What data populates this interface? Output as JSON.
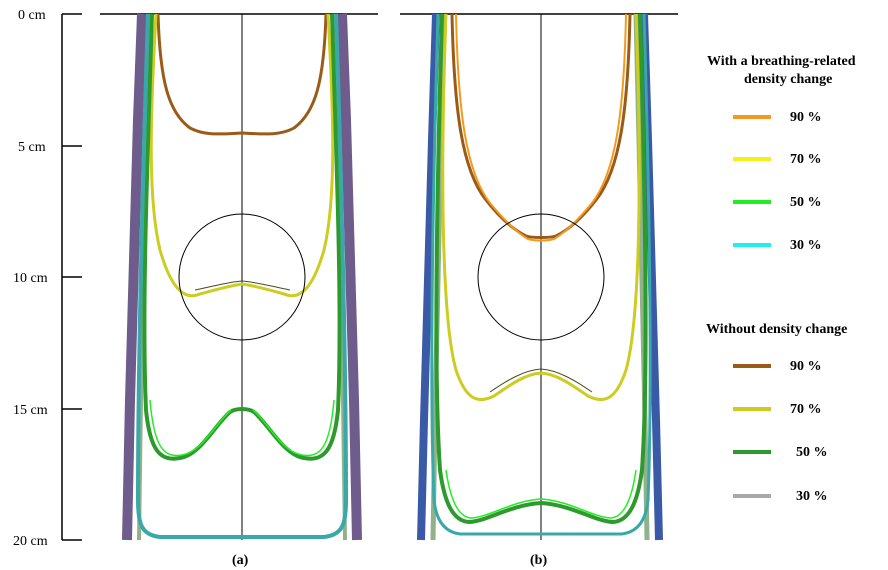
{
  "figure": {
    "depth_axis": {
      "ticks": [
        {
          "label": "0 cm",
          "depth_cm": 0
        },
        {
          "label": "5 cm",
          "depth_cm": 5
        },
        {
          "label": "10 cm",
          "depth_cm": 10
        },
        {
          "label": "15 cm",
          "depth_cm": 15
        },
        {
          "label": "20 cm",
          "depth_cm": 20
        }
      ]
    },
    "panels": [
      {
        "id": "a",
        "label": "(a)",
        "isodose_depths_cm": {
          "90": 4.7,
          "70": 10.6,
          "50": 15.3,
          "30": 19.9
        },
        "circle": {
          "center_depth_cm": 10.0,
          "radius_cm": 2.4
        }
      },
      {
        "id": "b",
        "label": "(b)",
        "isodose_depths_cm": {
          "90": 8.5,
          "70": 13.8,
          "50": 18.7,
          "30": 19.9
        },
        "circle": {
          "center_depth_cm": 10.0,
          "radius_cm": 2.4
        }
      }
    ],
    "legend": {
      "with_change": {
        "title_line1": "With a breathing-related",
        "title_line2": "density change",
        "items": [
          {
            "label": "90 %",
            "color": "#f39a1e"
          },
          {
            "label": "70 %",
            "color": "#f2f21a"
          },
          {
            "label": "50 %",
            "color": "#22ee22"
          },
          {
            "label": "30 %",
            "color": "#22eeee"
          }
        ]
      },
      "without_change": {
        "title": "Without density change",
        "items": [
          {
            "label": "90 %",
            "color": "#9a5a18"
          },
          {
            "label": "70 %",
            "color": "#cccc22"
          },
          {
            "label": "50 %",
            "color": "#2e9a2e"
          },
          {
            "label": "30 %",
            "color": "#a8a8a8"
          }
        ]
      }
    }
  }
}
